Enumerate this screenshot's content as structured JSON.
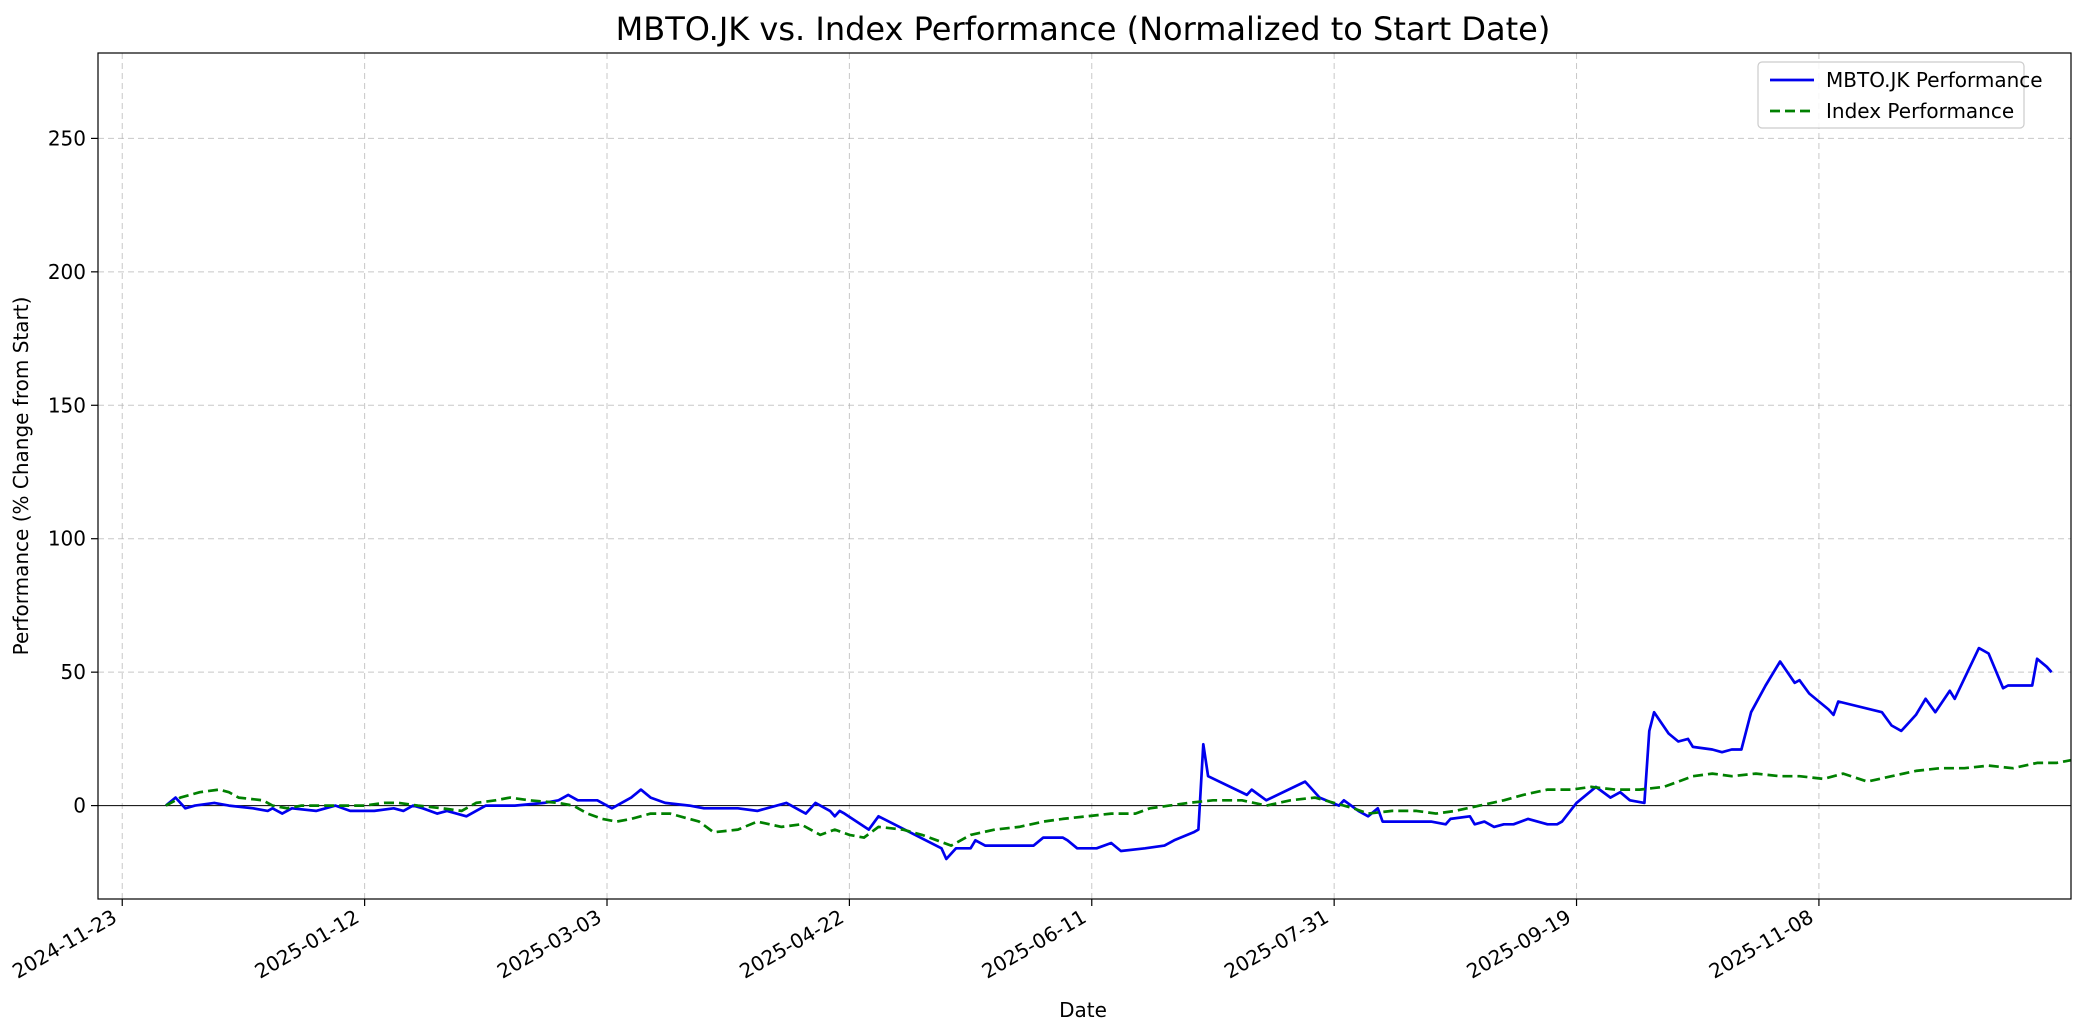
{
  "chart_data": {
    "type": "line",
    "title": "MBTO.JK vs. Index Performance (Normalized to Start Date)",
    "xlabel": "Date",
    "ylabel": "Performance (% Change from Start)",
    "xlim": [
      "2024-11-18",
      "2025-12-30"
    ],
    "ylim": [
      -35,
      282
    ],
    "grid": true,
    "legend_position": "top-right",
    "zero_line": true,
    "xticks": [
      "2024-11-23",
      "2025-01-12",
      "2025-03-03",
      "2025-04-22",
      "2025-06-11",
      "2025-07-31",
      "2025-09-19",
      "2025-11-08"
    ],
    "yticks": [
      0,
      50,
      100,
      150,
      200,
      250
    ],
    "series": [
      {
        "name": "MBTO.JK Performance",
        "color": "#0000ee",
        "style": "solid",
        "points": [
          [
            "2024-12-02",
            0
          ],
          [
            "2024-12-04",
            3
          ],
          [
            "2024-12-06",
            -1
          ],
          [
            "2024-12-08",
            0
          ],
          [
            "2024-12-12",
            1
          ],
          [
            "2024-12-15",
            0
          ],
          [
            "2024-12-20",
            -1
          ],
          [
            "2024-12-23",
            -2
          ],
          [
            "2024-12-24",
            -1
          ],
          [
            "2024-12-26",
            -3
          ],
          [
            "2024-12-28",
            -1
          ],
          [
            "2025-01-02",
            -2
          ],
          [
            "2025-01-06",
            0
          ],
          [
            "2025-01-09",
            -2
          ],
          [
            "2025-01-14",
            -2
          ],
          [
            "2025-01-18",
            -1
          ],
          [
            "2025-01-20",
            -2
          ],
          [
            "2025-01-22",
            0
          ],
          [
            "2025-01-24",
            -1
          ],
          [
            "2025-01-27",
            -3
          ],
          [
            "2025-01-29",
            -2
          ],
          [
            "2025-02-02",
            -4
          ],
          [
            "2025-02-04",
            -2
          ],
          [
            "2025-02-06",
            0
          ],
          [
            "2025-02-12",
            0
          ],
          [
            "2025-02-18",
            1
          ],
          [
            "2025-02-21",
            2
          ],
          [
            "2025-02-23",
            4
          ],
          [
            "2025-02-25",
            2
          ],
          [
            "2025-03-01",
            2
          ],
          [
            "2025-03-04",
            -1
          ],
          [
            "2025-03-06",
            1
          ],
          [
            "2025-03-08",
            3
          ],
          [
            "2025-03-10",
            6
          ],
          [
            "2025-03-12",
            3
          ],
          [
            "2025-03-15",
            1
          ],
          [
            "2025-03-20",
            0
          ],
          [
            "2025-03-23",
            -1
          ],
          [
            "2025-03-30",
            -1
          ],
          [
            "2025-04-03",
            -2
          ],
          [
            "2025-04-09",
            1
          ],
          [
            "2025-04-10",
            0
          ],
          [
            "2025-04-12",
            -2
          ],
          [
            "2025-04-13",
            -3
          ],
          [
            "2025-04-15",
            1
          ],
          [
            "2025-04-18",
            -2
          ],
          [
            "2025-04-19",
            -4
          ],
          [
            "2025-04-20",
            -2
          ],
          [
            "2025-04-21",
            -3
          ],
          [
            "2025-04-26",
            -9
          ],
          [
            "2025-04-28",
            -4
          ],
          [
            "2025-05-11",
            -16
          ],
          [
            "2025-05-12",
            -20
          ],
          [
            "2025-05-14",
            -16
          ],
          [
            "2025-05-17",
            -16
          ],
          [
            "2025-05-18",
            -13
          ],
          [
            "2025-05-20",
            -15
          ],
          [
            "2025-05-24",
            -15
          ],
          [
            "2025-05-30",
            -15
          ],
          [
            "2025-06-01",
            -12
          ],
          [
            "2025-06-05",
            -12
          ],
          [
            "2025-06-06",
            -13
          ],
          [
            "2025-06-08",
            -16
          ],
          [
            "2025-06-12",
            -16
          ],
          [
            "2025-06-15",
            -14
          ],
          [
            "2025-06-17",
            -17
          ],
          [
            "2025-06-22",
            -16
          ],
          [
            "2025-06-26",
            -15
          ],
          [
            "2025-06-28",
            -13
          ],
          [
            "2025-07-02",
            -10
          ],
          [
            "2025-07-03",
            -9
          ],
          [
            "2025-07-04",
            23
          ],
          [
            "2025-07-05",
            11
          ],
          [
            "2025-07-13",
            4
          ],
          [
            "2025-07-14",
            6
          ],
          [
            "2025-07-17",
            2
          ],
          [
            "2025-07-25",
            9
          ],
          [
            "2025-07-26",
            7
          ],
          [
            "2025-07-28",
            3
          ],
          [
            "2025-08-01",
            0
          ],
          [
            "2025-08-02",
            2
          ],
          [
            "2025-08-05",
            -2
          ],
          [
            "2025-08-07",
            -4
          ],
          [
            "2025-08-09",
            -1
          ],
          [
            "2025-08-10",
            -6
          ],
          [
            "2025-08-17",
            -6
          ],
          [
            "2025-08-20",
            -6
          ],
          [
            "2025-08-23",
            -7
          ],
          [
            "2025-08-24",
            -5
          ],
          [
            "2025-08-28",
            -4
          ],
          [
            "2025-08-29",
            -7
          ],
          [
            "2025-08-31",
            -6
          ],
          [
            "2025-09-02",
            -8
          ],
          [
            "2025-09-04",
            -7
          ],
          [
            "2025-09-06",
            -7
          ],
          [
            "2025-09-09",
            -5
          ],
          [
            "2025-09-13",
            -7
          ],
          [
            "2025-09-15",
            -7
          ],
          [
            "2025-09-16",
            -6
          ],
          [
            "2025-09-19",
            1
          ],
          [
            "2025-09-23",
            7
          ],
          [
            "2025-09-26",
            3
          ],
          [
            "2025-09-28",
            5
          ],
          [
            "2025-09-30",
            2
          ],
          [
            "2025-10-03",
            1
          ],
          [
            "2025-10-04",
            28
          ],
          [
            "2025-10-05",
            35
          ],
          [
            "2025-10-08",
            27
          ],
          [
            "2025-10-10",
            24
          ],
          [
            "2025-10-12",
            25
          ],
          [
            "2025-10-13",
            22
          ],
          [
            "2025-10-17",
            21
          ],
          [
            "2025-10-19",
            20
          ],
          [
            "2025-10-21",
            21
          ],
          [
            "2025-10-23",
            21
          ],
          [
            "2025-10-25",
            35
          ],
          [
            "2025-10-28",
            45
          ],
          [
            "2025-10-31",
            54
          ],
          [
            "2025-11-03",
            46
          ],
          [
            "2025-11-04",
            47
          ],
          [
            "2025-11-06",
            42
          ],
          [
            "2025-11-10",
            36
          ],
          [
            "2025-11-11",
            34
          ],
          [
            "2025-11-12",
            39
          ],
          [
            "2025-11-21",
            35
          ],
          [
            "2025-11-23",
            30
          ],
          [
            "2025-11-25",
            28
          ],
          [
            "2025-11-28",
            34
          ],
          [
            "2025-11-30",
            40
          ],
          [
            "2025-12-02",
            35
          ],
          [
            "2025-12-05",
            43
          ],
          [
            "2025-12-06",
            40
          ],
          [
            "2025-12-11",
            59
          ],
          [
            "2025-12-13",
            57
          ],
          [
            "2025-12-16",
            44
          ],
          [
            "2025-12-17",
            45
          ],
          [
            "2025-12-22",
            45
          ],
          [
            "2025-12-23",
            55
          ],
          [
            "2025-12-25",
            52
          ],
          [
            "2025-12-26",
            50
          ]
        ]
      },
      {
        "name": "Index Performance",
        "color": "#008000",
        "style": "dashed",
        "points": [
          [
            "2024-12-02",
            0
          ],
          [
            "2024-12-05",
            3
          ],
          [
            "2024-12-09",
            5
          ],
          [
            "2024-12-13",
            6
          ],
          [
            "2024-12-15",
            5
          ],
          [
            "2024-12-17",
            3
          ],
          [
            "2024-12-22",
            2
          ],
          [
            "2024-12-24",
            0
          ],
          [
            "2024-12-27",
            -1
          ],
          [
            "2024-12-30",
            0
          ],
          [
            "2025-01-05",
            0
          ],
          [
            "2025-01-08",
            0
          ],
          [
            "2025-01-12",
            0
          ],
          [
            "2025-01-16",
            1
          ],
          [
            "2025-01-19",
            1
          ],
          [
            "2025-01-23",
            0
          ],
          [
            "2025-01-28",
            -1
          ],
          [
            "2025-02-01",
            -2
          ],
          [
            "2025-02-04",
            1
          ],
          [
            "2025-02-08",
            2
          ],
          [
            "2025-02-11",
            3
          ],
          [
            "2025-02-15",
            2
          ],
          [
            "2025-02-21",
            1
          ],
          [
            "2025-02-24",
            0
          ],
          [
            "2025-02-27",
            -3
          ],
          [
            "2025-03-02",
            -5
          ],
          [
            "2025-03-05",
            -6
          ],
          [
            "2025-03-08",
            -5
          ],
          [
            "2025-03-12",
            -3
          ],
          [
            "2025-03-16",
            -3
          ],
          [
            "2025-03-22",
            -6
          ],
          [
            "2025-03-25",
            -10
          ],
          [
            "2025-03-30",
            -9
          ],
          [
            "2025-04-03",
            -6
          ],
          [
            "2025-04-08",
            -8
          ],
          [
            "2025-04-12",
            -7
          ],
          [
            "2025-04-16",
            -11
          ],
          [
            "2025-04-19",
            -9
          ],
          [
            "2025-04-22",
            -11
          ],
          [
            "2025-04-25",
            -12
          ],
          [
            "2025-04-28",
            -8
          ],
          [
            "2025-05-03",
            -9
          ],
          [
            "2025-05-07",
            -11
          ],
          [
            "2025-05-13",
            -15
          ],
          [
            "2025-05-17",
            -11
          ],
          [
            "2025-05-22",
            -9
          ],
          [
            "2025-05-27",
            -8
          ],
          [
            "2025-06-01",
            -6
          ],
          [
            "2025-06-05",
            -5
          ],
          [
            "2025-06-10",
            -4
          ],
          [
            "2025-06-15",
            -3
          ],
          [
            "2025-06-20",
            -3
          ],
          [
            "2025-06-23",
            -1
          ],
          [
            "2025-06-27",
            0
          ],
          [
            "2025-07-01",
            1
          ],
          [
            "2025-07-06",
            2
          ],
          [
            "2025-07-12",
            2
          ],
          [
            "2025-07-17",
            0
          ],
          [
            "2025-07-22",
            2
          ],
          [
            "2025-07-27",
            3
          ],
          [
            "2025-07-31",
            1
          ],
          [
            "2025-08-04",
            -1
          ],
          [
            "2025-08-07",
            -3
          ],
          [
            "2025-08-12",
            -2
          ],
          [
            "2025-08-17",
            -2
          ],
          [
            "2025-08-21",
            -3
          ],
          [
            "2025-08-25",
            -2
          ],
          [
            "2025-08-30",
            0
          ],
          [
            "2025-09-04",
            2
          ],
          [
            "2025-09-08",
            4
          ],
          [
            "2025-09-13",
            6
          ],
          [
            "2025-09-18",
            6
          ],
          [
            "2025-09-22",
            7
          ],
          [
            "2025-09-27",
            6
          ],
          [
            "2025-10-02",
            6
          ],
          [
            "2025-10-07",
            7
          ],
          [
            "2025-10-10",
            9
          ],
          [
            "2025-10-13",
            11
          ],
          [
            "2025-10-17",
            12
          ],
          [
            "2025-10-21",
            11
          ],
          [
            "2025-10-26",
            12
          ],
          [
            "2025-10-31",
            11
          ],
          [
            "2025-11-04",
            11
          ],
          [
            "2025-11-09",
            10
          ],
          [
            "2025-11-13",
            12
          ],
          [
            "2025-11-18",
            9
          ],
          [
            "2025-11-23",
            11
          ],
          [
            "2025-11-28",
            13
          ],
          [
            "2025-12-03",
            14
          ],
          [
            "2025-12-08",
            14
          ],
          [
            "2025-12-13",
            15
          ],
          [
            "2025-12-18",
            14
          ],
          [
            "2025-12-23",
            16
          ],
          [
            "2025-12-27",
            16
          ],
          [
            "2025-12-30",
            17
          ]
        ]
      }
    ]
  }
}
